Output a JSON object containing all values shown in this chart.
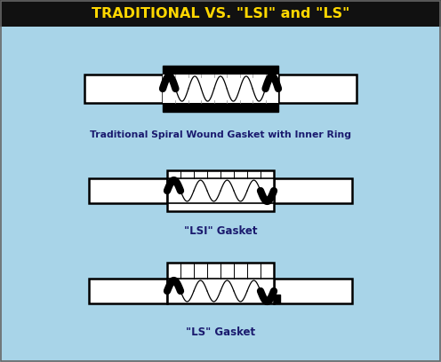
{
  "title": "TRADITIONAL VS. \"LSI\" and \"LS\"",
  "title_color": "#FFD700",
  "title_bg": "#111111",
  "bg_color": "#A8D4E8",
  "label1": "Traditional Spiral Wound Gasket with Inner Ring",
  "label2": "\"LSI\" Gasket",
  "label3": "\"LS\" Gasket",
  "label_color": "#1a1a6e",
  "fig_width": 4.96,
  "fig_height": 4.08,
  "dpi": 100
}
